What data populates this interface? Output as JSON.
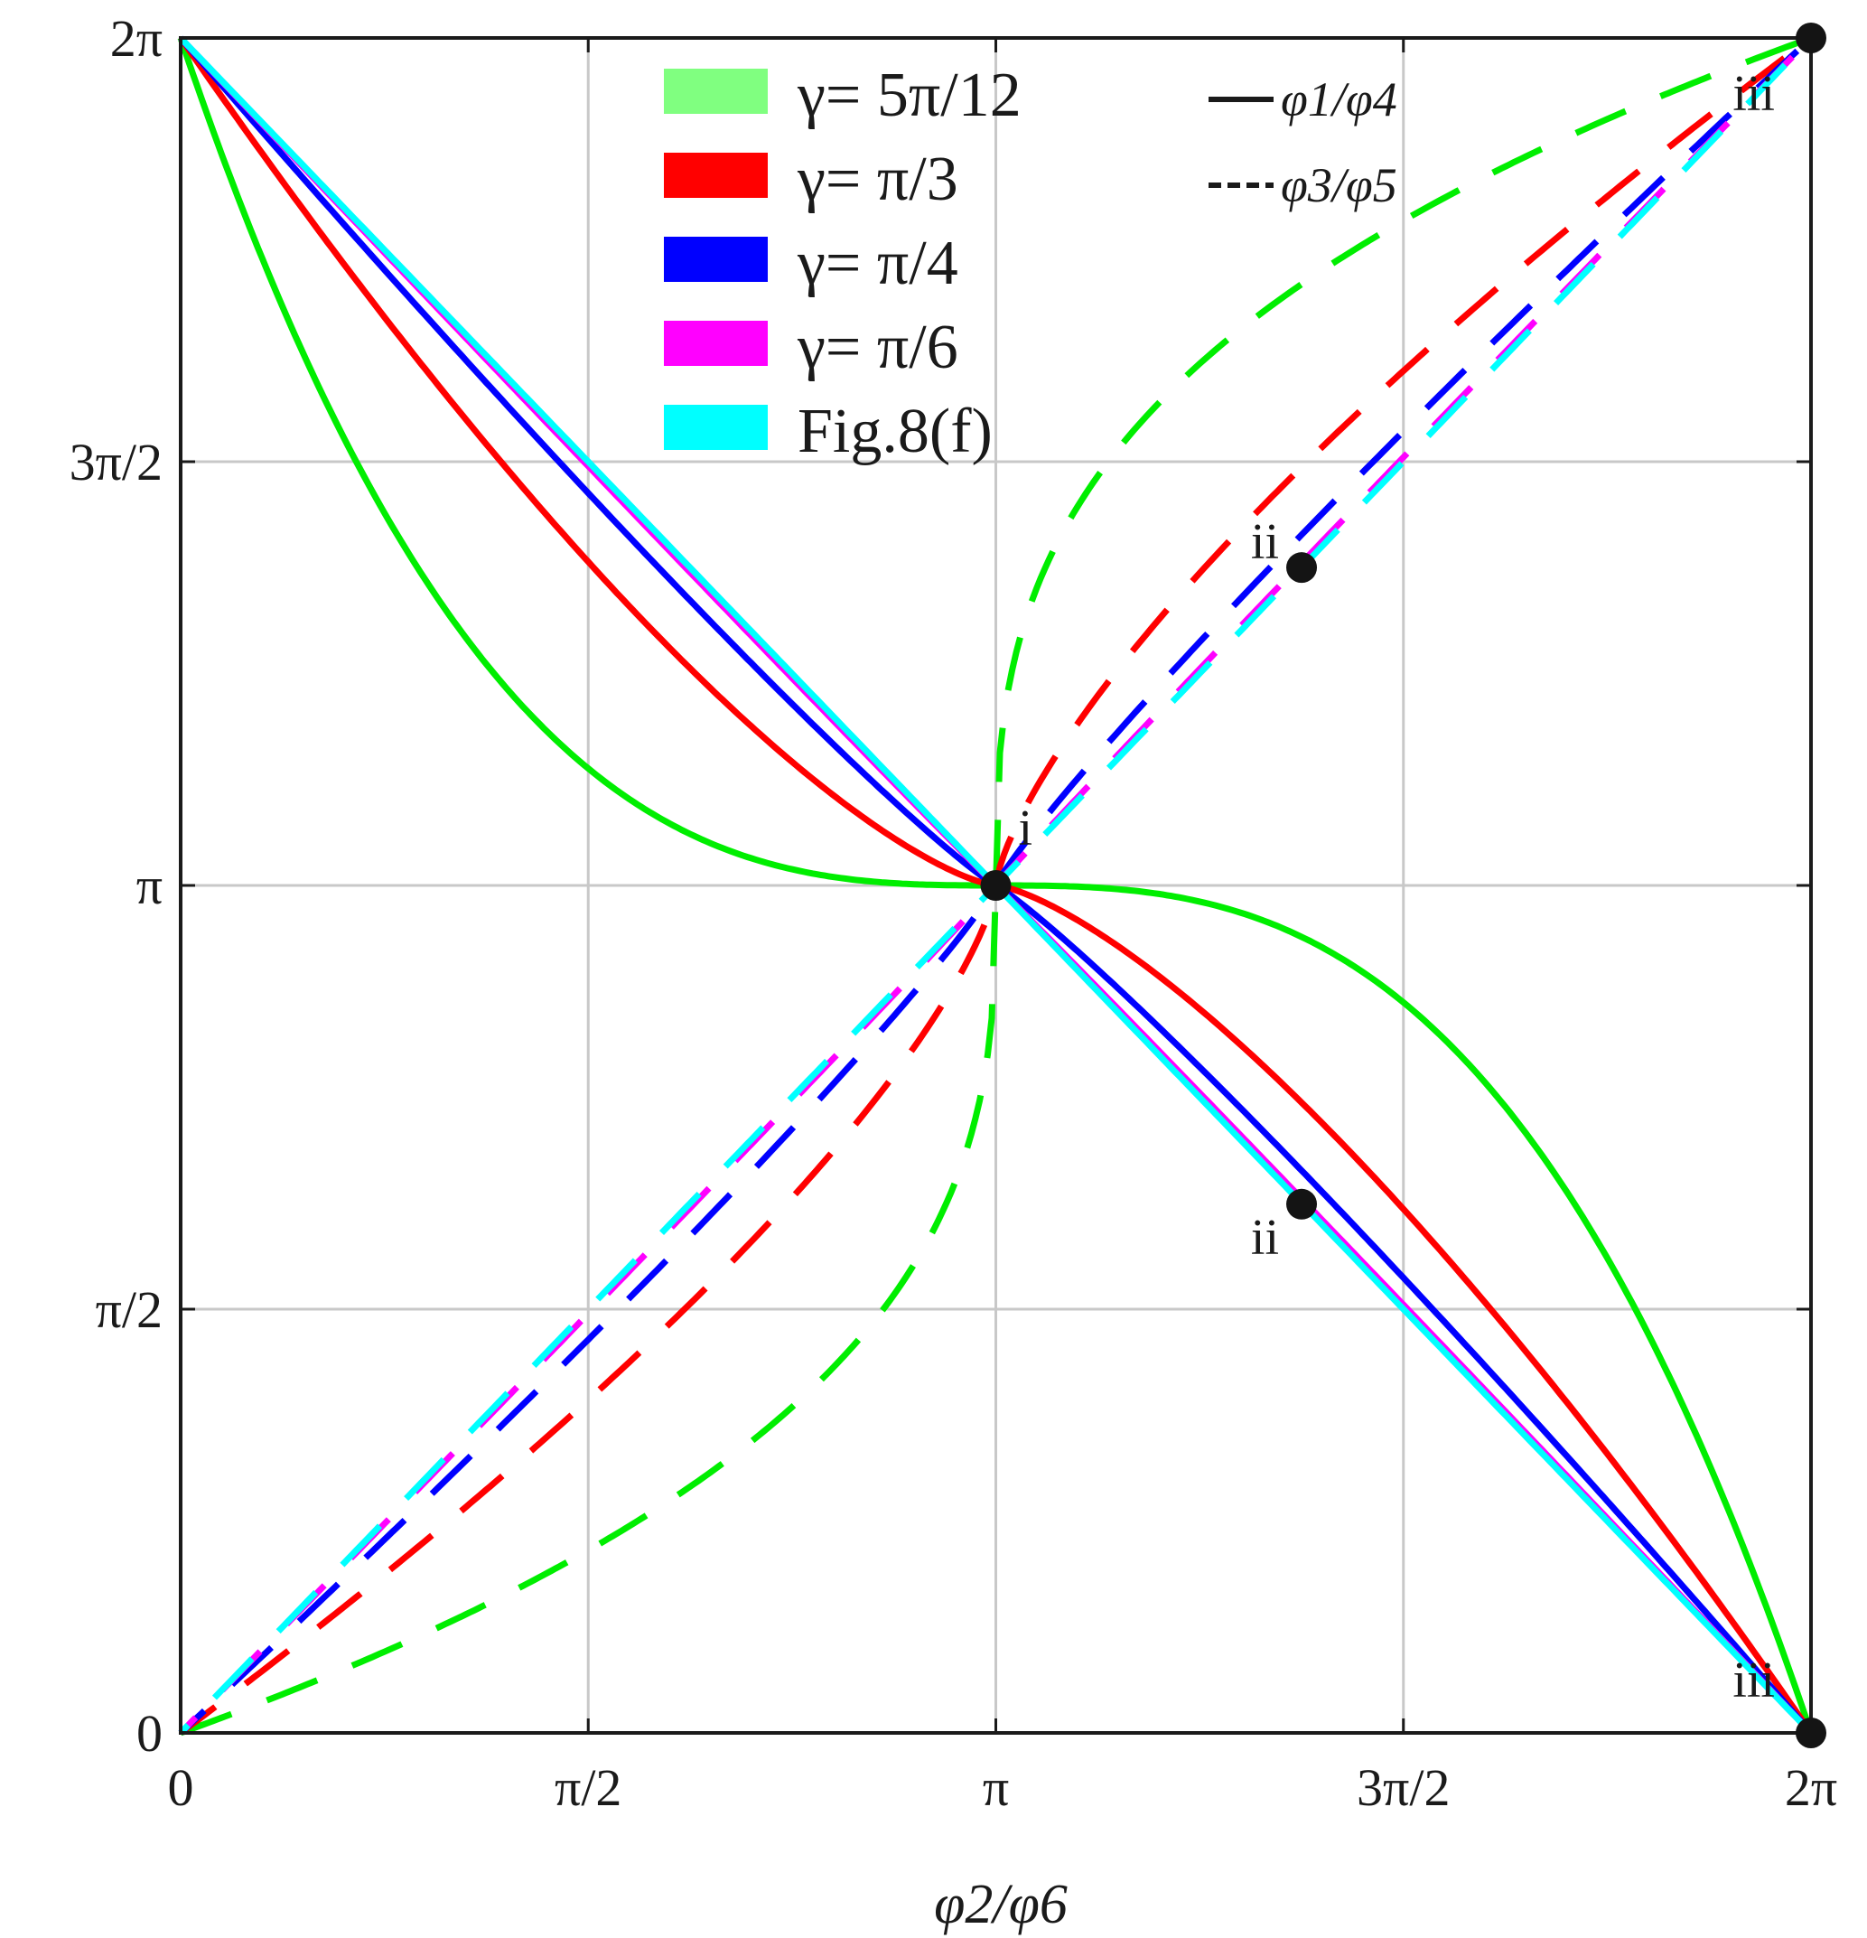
{
  "chart_data": {
    "type": "line",
    "xlabel": "φ2/φ6",
    "ylabel": "",
    "xlim": [
      0,
      6.283185
    ],
    "ylim": [
      0,
      6.283185
    ],
    "x_ticks": [
      {
        "value": 0,
        "label": "0"
      },
      {
        "value": 1.570796,
        "label": "π/2"
      },
      {
        "value": 3.141593,
        "label": "π"
      },
      {
        "value": 4.712389,
        "label": "3π/2"
      },
      {
        "value": 6.283185,
        "label": "2π"
      }
    ],
    "y_ticks": [
      {
        "value": 0,
        "label": "0"
      },
      {
        "value": 1.570796,
        "label": "π/2"
      },
      {
        "value": 3.141593,
        "label": "π"
      },
      {
        "value": 4.712389,
        "label": "3π/2"
      },
      {
        "value": 6.283185,
        "label": "2π"
      }
    ],
    "grid": true,
    "legend_position": "top-center",
    "series": [
      {
        "name": "γ= 5π/12",
        "color": "#00ee00",
        "legend_color": "#80ff80",
        "k": 0.35
      },
      {
        "name": "γ= π/3",
        "color": "#ff0000",
        "legend_color": "#ff0000",
        "k": 0.72
      },
      {
        "name": "γ= π/4",
        "color": "#0000ff",
        "legend_color": "#0000ff",
        "k": 0.9
      },
      {
        "name": "γ= π/6",
        "color": "#ff00ff",
        "legend_color": "#ff00ff",
        "k": 0.985
      },
      {
        "name": "Fig.8(f)",
        "color": "#00ffff",
        "legend_color": "#00ffff",
        "k": 1.0
      }
    ],
    "line_styles": [
      {
        "style": "solid",
        "label": "φ1/φ4"
      },
      {
        "style": "dashed",
        "label": "φ3/φ5"
      }
    ],
    "points": [
      {
        "label": "i",
        "x": 3.141593,
        "y": 3.141593
      },
      {
        "label": "ii",
        "x": 4.32,
        "y": 4.32
      },
      {
        "label": "ii",
        "x": 4.32,
        "y": 1.96
      },
      {
        "label": "iii",
        "x": 6.283185,
        "y": 6.283185
      },
      {
        "label": "iii",
        "x": 6.283185,
        "y": 0
      }
    ]
  }
}
